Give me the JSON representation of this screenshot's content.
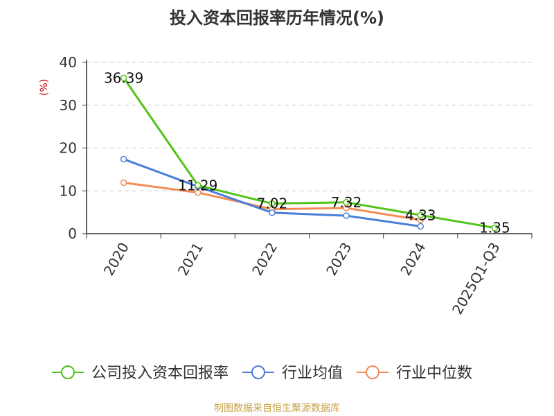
{
  "title": "投入资本回报率历年情况(%)",
  "source": "制图数据来自恒生聚源数据库",
  "chart_data": {
    "type": "line",
    "title": "投入资本回报率历年情况(%)",
    "ylabel": "(%)",
    "xlabel": "",
    "categories": [
      "2020",
      "2021",
      "2022",
      "2023",
      "2024",
      "2025Q1-Q3"
    ],
    "ylim": [
      0,
      40
    ],
    "yticks": [
      0,
      10,
      20,
      30,
      40
    ],
    "grid": true,
    "legend_position": "bottom",
    "series": [
      {
        "name": "公司投入资本回报率",
        "color": "#52c41a",
        "values": [
          36.39,
          11.29,
          7.02,
          7.32,
          4.33,
          1.35
        ],
        "labels": [
          "36.39",
          "11.29",
          "7.02",
          "7.32",
          "4.33",
          "1.35"
        ]
      },
      {
        "name": "行业均值",
        "color": "#4a7ed8",
        "values": [
          17.4,
          11.0,
          4.9,
          4.2,
          1.7,
          null
        ]
      },
      {
        "name": "行业中位数",
        "color": "#f28c55",
        "values": [
          11.9,
          9.6,
          5.7,
          6.0,
          3.2,
          null
        ]
      }
    ]
  }
}
